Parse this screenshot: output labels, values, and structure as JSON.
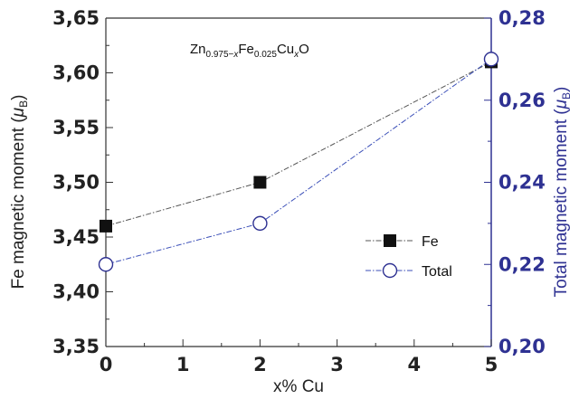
{
  "chart_data": {
    "type": "line",
    "annotation": {
      "parts": [
        {
          "text": "Zn",
          "sub": false
        },
        {
          "text": "0.975−",
          "sub": true
        },
        {
          "text": "x",
          "sub": true,
          "italic": true
        },
        {
          "text": "Fe",
          "sub": false
        },
        {
          "text": "0.025",
          "sub": true
        },
        {
          "text": "Cu",
          "sub": false
        },
        {
          "text": "x",
          "sub": true,
          "italic": true
        },
        {
          "text": "O",
          "sub": false
        }
      ]
    },
    "xlabel": "x% Cu",
    "ylabel_left": {
      "main": "Fe magnetic moment (",
      "italic": "μ",
      "sub": "B",
      "close": ")"
    },
    "ylabel_right": {
      "main": "Total magnetic moment (",
      "italic": "μ",
      "sub": "B",
      "close": ")"
    },
    "xlim": [
      0,
      5
    ],
    "ylim_left": [
      3.35,
      3.65
    ],
    "ylim_right": [
      0.2,
      0.28
    ],
    "x_ticks": [
      "0",
      "1",
      "2",
      "3",
      "4",
      "5"
    ],
    "y_ticks_left": [
      "3,35",
      "3,40",
      "3,45",
      "3,50",
      "3,55",
      "3,60",
      "3,65"
    ],
    "y_ticks_right": [
      "0,20",
      "0,22",
      "0,24",
      "0,26",
      "0,28"
    ],
    "grid": false,
    "legend_position": "center-right",
    "series": [
      {
        "name": "Fe",
        "axis": "left",
        "marker": "filled-square",
        "line": "dash-dot",
        "color": "#111111",
        "line_color": "#555555",
        "x": [
          0,
          2,
          5
        ],
        "y": [
          3.46,
          3.5,
          3.61
        ]
      },
      {
        "name": "Total",
        "axis": "right",
        "marker": "open-circle",
        "line": "dash-dot",
        "color": "#2e3192",
        "line_color": "#3b4fb8",
        "x": [
          0,
          2,
          5
        ],
        "y": [
          0.22,
          0.23,
          0.27
        ]
      }
    ]
  }
}
